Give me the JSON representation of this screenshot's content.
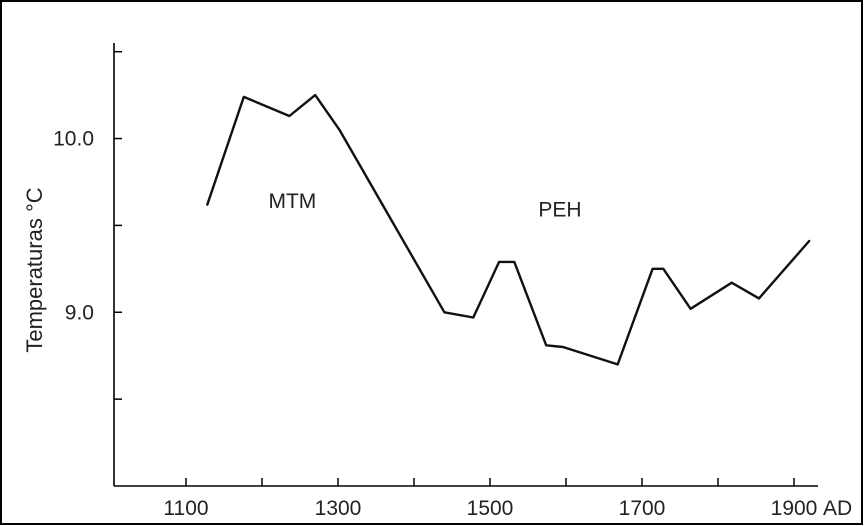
{
  "chart_data": {
    "type": "line",
    "title": "",
    "xlabel": "AD",
    "ylabel": "Temperaturas °C",
    "xlim": [
      1050,
      1930
    ],
    "ylim": [
      8.0,
      10.55
    ],
    "x_ticks": [
      1100,
      1200,
      1300,
      1400,
      1500,
      1600,
      1700,
      1800,
      1900
    ],
    "x_tick_labels": [
      "1100",
      "",
      "1300",
      "",
      "1500",
      "",
      "1700",
      "",
      "1900"
    ],
    "y_ticks": [
      8.5,
      9.0,
      9.5,
      10.0,
      10.5
    ],
    "y_tick_labels": [
      "",
      "9.0",
      "",
      "10.0",
      ""
    ],
    "grid": false,
    "series": [
      {
        "x": [
          1128,
          1176,
          1236,
          1270,
          1302,
          1440,
          1478,
          1512,
          1532,
          1574,
          1596,
          1668,
          1714,
          1728,
          1764,
          1818,
          1854,
          1920
        ],
        "y": [
          9.62,
          10.24,
          10.13,
          10.25,
          10.05,
          9.0,
          8.97,
          9.29,
          9.29,
          8.81,
          8.8,
          8.7,
          9.25,
          9.25,
          9.02,
          9.17,
          9.08,
          9.41
        ]
      }
    ],
    "annotations": [
      {
        "text": "MTM",
        "x": 1240,
        "y": 9.6
      },
      {
        "text": "PEH",
        "x": 1592,
        "y": 9.55
      }
    ]
  }
}
